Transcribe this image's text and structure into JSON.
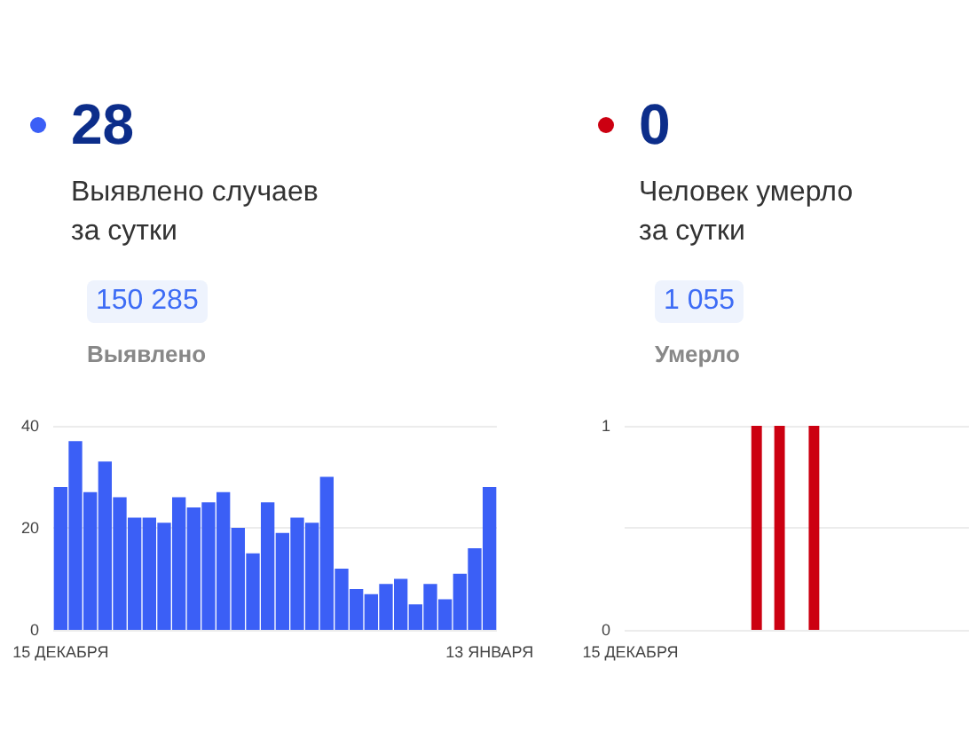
{
  "chart_data": [
    {
      "type": "bar",
      "title": "28",
      "subtitle": "Выявлено случаев за сутки",
      "annotations": [
        "150 285",
        "Выявлено"
      ],
      "categories": [
        "15 ДЕКАБРЯ",
        null,
        null,
        null,
        null,
        null,
        null,
        null,
        null,
        null,
        null,
        null,
        null,
        null,
        null,
        null,
        null,
        null,
        null,
        null,
        null,
        null,
        null,
        null,
        null,
        null,
        null,
        null,
        null,
        "13 ЯНВАРЯ"
      ],
      "values": [
        28,
        37,
        27,
        33,
        26,
        22,
        22,
        21,
        26,
        24,
        25,
        27,
        20,
        15,
        25,
        19,
        22,
        21,
        30,
        12,
        8,
        7,
        9,
        10,
        5,
        9,
        6,
        11,
        16,
        28
      ],
      "color": "#3b5ff6",
      "ylim": [
        0,
        40
      ],
      "yticks": [
        0,
        20,
        40
      ],
      "grid": true
    },
    {
      "type": "bar",
      "title": "0",
      "subtitle": "Человек умерло за сутки",
      "annotations": [
        "1 055",
        "Умерло"
      ],
      "categories": [
        "15 ДЕКАБРЯ",
        null,
        null,
        null,
        null,
        null,
        null,
        null,
        null,
        null,
        null,
        null,
        null,
        null,
        null,
        null,
        null,
        null,
        null,
        null,
        null,
        null,
        null,
        null,
        null,
        null,
        null,
        null,
        null,
        null
      ],
      "values": [
        0,
        0,
        0,
        0,
        0,
        0,
        0,
        0,
        0,
        0,
        0,
        1,
        0,
        1,
        0,
        0,
        1,
        0,
        0,
        0,
        0,
        0,
        0,
        0,
        0,
        0,
        0,
        0,
        0,
        0
      ],
      "color": "#cc0011",
      "ylim": [
        0,
        1
      ],
      "yticks": [
        0,
        {
          "value": 0.5,
          "label": null
        },
        1
      ],
      "grid": true
    }
  ]
}
